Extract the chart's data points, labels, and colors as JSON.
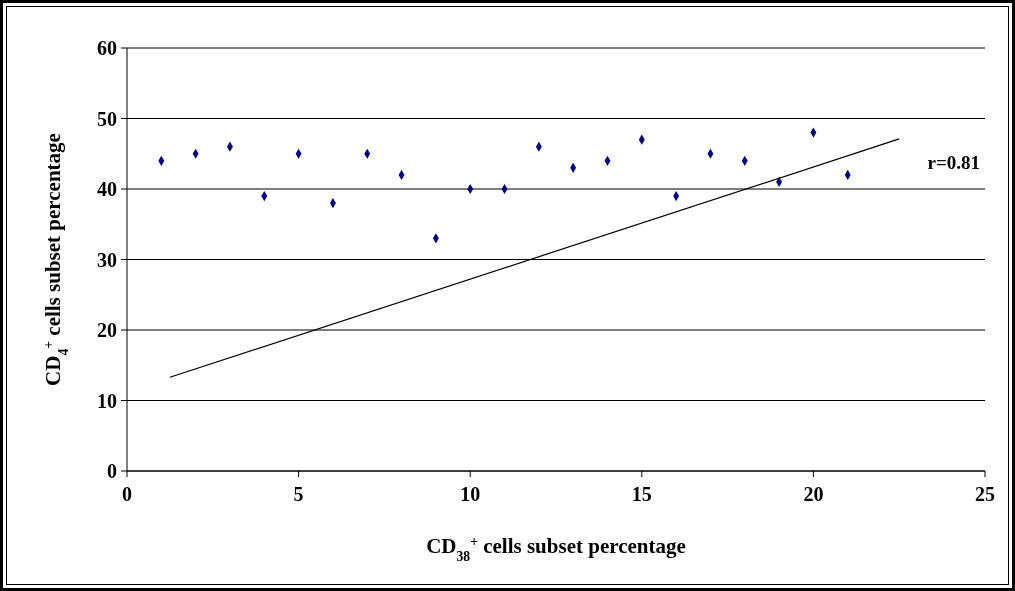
{
  "chart_data": {
    "type": "scatter",
    "xlabel": "CD$_{38}$$^{+}$ cells subset percentage",
    "ylabel": "CD$_{4}$$^{+}$ cells subset percentage",
    "x": [
      1,
      2,
      3,
      4,
      5,
      6,
      7,
      8,
      9,
      10,
      11,
      12,
      13,
      14,
      15,
      16,
      17,
      18,
      19,
      20,
      21
    ],
    "series": [
      {
        "color": "#000080",
        "marker": "diamond",
        "values": [
          44,
          45,
          46,
          39,
          45,
          38,
          45,
          42,
          33,
          40,
          40,
          46,
          43,
          44,
          47,
          39,
          45,
          44,
          41,
          48,
          42
        ]
      },
      {
        "type": "line",
        "color": "#000000",
        "marker": "none",
        "line_style": "solid",
        "x": [
          1.25,
          22.5
        ],
        "values": [
          13.3,
          47.1
        ]
      }
    ],
    "xlim": [
      0,
      25
    ],
    "xticks": [
      0,
      5,
      10,
      15,
      20,
      25
    ],
    "ylim": [
      0,
      60
    ],
    "yticks": [
      0,
      10,
      20,
      30,
      40,
      50,
      60
    ],
    "grid": "y",
    "annotations": [
      "r=0.81"
    ]
  }
}
